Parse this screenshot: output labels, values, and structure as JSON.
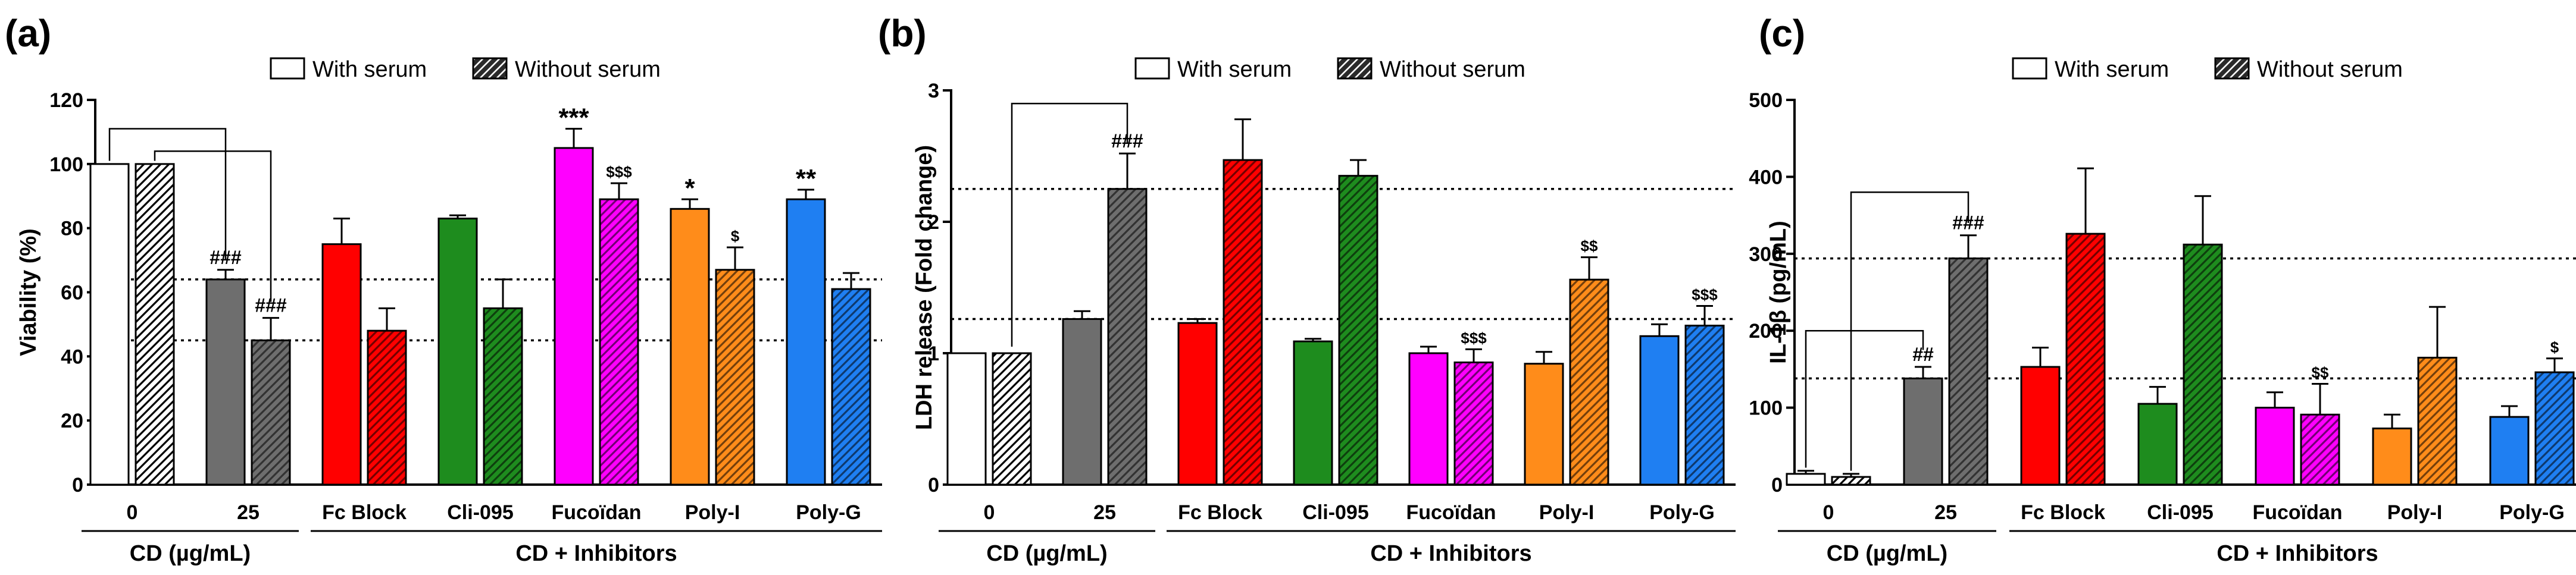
{
  "figure": {
    "description_free": true
  },
  "colors": {
    "control": "#ffffff",
    "cd": "#6e6e6e",
    "fc_block": "#ff0000",
    "cli_095": "#1e8c1e",
    "fucoidan": "#ff00ff",
    "poly_i": "#ff8c1a",
    "poly_g": "#1f7ff2",
    "outline": "#000000"
  },
  "legend": {
    "with_serum": "With serum",
    "without_serum": "Without serum"
  },
  "chart_data": [
    {
      "panel": "(a)",
      "type": "bar",
      "ylabel": "Viability (%)",
      "ylim": [
        0,
        120
      ],
      "yticks": [
        0,
        20,
        40,
        60,
        80,
        100,
        120
      ],
      "categories": [
        "0",
        "25",
        "Fc Block",
        "Cli-095",
        "Fucoïdan",
        "Poly-I",
        "Poly-G"
      ],
      "series": [
        {
          "name": "With serum",
          "values": [
            100,
            64,
            75,
            83,
            105,
            86,
            89
          ],
          "errors": [
            0,
            3,
            8,
            1,
            6,
            3,
            3
          ]
        },
        {
          "name": "Without serum",
          "values": [
            100,
            45,
            48,
            55,
            89,
            67,
            61
          ],
          "errors": [
            0,
            7,
            7,
            9,
            5,
            7,
            5
          ]
        }
      ],
      "group_labels": {
        "cd": "CD (µg/mL)",
        "inhibitors": "CD + Inhibitors"
      },
      "annotations": {
        "with": [
          "",
          "###",
          "",
          "",
          "***",
          "*",
          "**"
        ],
        "without": [
          "",
          "###",
          "",
          "",
          "$$$",
          "$",
          ""
        ]
      },
      "reference_lines": [
        64,
        45
      ]
    },
    {
      "panel": "(b)",
      "type": "bar",
      "ylabel": "LDH release (Fold change)",
      "ylim": [
        0,
        3
      ],
      "yticks": [
        0,
        1,
        2,
        3
      ],
      "categories": [
        "0",
        "25",
        "Fc Block",
        "Cli-095",
        "Fucoïdan",
        "Poly-I",
        "Poly-G"
      ],
      "series": [
        {
          "name": "With serum",
          "values": [
            1.0,
            1.26,
            1.23,
            1.09,
            1.0,
            0.92,
            1.13
          ],
          "errors": [
            0,
            0.06,
            0.03,
            0.02,
            0.05,
            0.09,
            0.09
          ]
        },
        {
          "name": "Without serum",
          "values": [
            1.0,
            2.25,
            2.47,
            2.35,
            0.93,
            1.56,
            1.21
          ],
          "errors": [
            0,
            0.27,
            0.31,
            0.12,
            0.1,
            0.17,
            0.15
          ]
        }
      ],
      "group_labels": {
        "cd": "CD (µg/mL)",
        "inhibitors": "CD + Inhibitors"
      },
      "annotations": {
        "with": [
          "",
          "",
          "",
          "",
          "",
          "",
          ""
        ],
        "without": [
          "",
          "###",
          "",
          "",
          "$$$",
          "$$",
          "$$$"
        ]
      },
      "reference_lines": [
        2.25,
        1.26
      ]
    },
    {
      "panel": "(c)",
      "type": "bar",
      "ylabel": "IL-1β (pg/mL)",
      "ylim": [
        0,
        500
      ],
      "yticks": [
        0,
        100,
        200,
        300,
        400,
        500
      ],
      "categories": [
        "0",
        "25",
        "Fc Block",
        "Cli-095",
        "Fucoïdan",
        "Poly-I",
        "Poly-G"
      ],
      "series": [
        {
          "name": "With serum",
          "values": [
            14,
            138,
            153,
            105,
            100,
            73,
            88
          ],
          "errors": [
            4,
            15,
            25,
            22,
            20,
            18,
            14
          ]
        },
        {
          "name": "Without serum",
          "values": [
            10,
            294,
            326,
            312,
            91,
            165,
            146
          ],
          "errors": [
            4,
            30,
            85,
            63,
            40,
            66,
            18
          ]
        }
      ],
      "group_labels": {
        "cd": "CD (µg/mL)",
        "inhibitors": "CD + Inhibitors"
      },
      "annotations": {
        "with": [
          "",
          "##",
          "",
          "",
          "",
          "",
          ""
        ],
        "without": [
          "",
          "###",
          "",
          "",
          "$$",
          "",
          "$"
        ]
      },
      "reference_lines": [
        294,
        138
      ]
    }
  ]
}
